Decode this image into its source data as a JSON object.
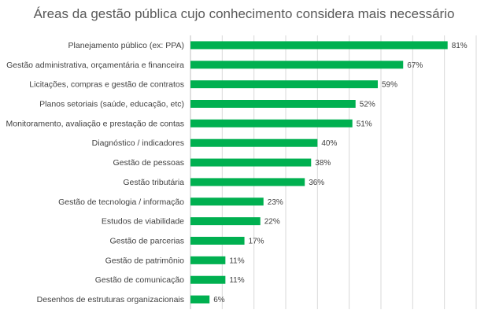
{
  "chart_data": {
    "type": "bar",
    "orientation": "horizontal",
    "title": "Áreas da gestão pública cujo conhecimento considera mais necessário",
    "xlabel": "",
    "ylabel": "",
    "xlim": [
      0,
      90
    ],
    "grid": true,
    "legend": "none",
    "bar_color": "#00B050",
    "value_suffix": "%",
    "categories": [
      "Planejamento público (ex: PPA)",
      "Gestão administrativa, orçamentária e financeira",
      "Licitações, compras e gestão de contratos",
      "Planos setoriais (saúde, educação, etc)",
      "Monitoramento, avaliação e prestação de contas",
      "Diagnóstico / indicadores",
      "Gestão de pessoas",
      "Gestão tributária",
      "Gestão de tecnologia / informação",
      "Estudos de viabilidade",
      "Gestão de parcerias",
      "Gestão de patrimônio",
      "Gestão de comunicação",
      "Desenhos de estruturas organizacionais"
    ],
    "values": [
      81,
      67,
      59,
      52,
      51,
      40,
      38,
      36,
      23,
      22,
      17,
      11,
      11,
      6
    ],
    "value_labels": [
      "81%",
      "67%",
      "59%",
      "52%",
      "51%",
      "40%",
      "38%",
      "36%",
      "23%",
      "22%",
      "17%",
      "11%",
      "11%",
      "6%"
    ]
  }
}
